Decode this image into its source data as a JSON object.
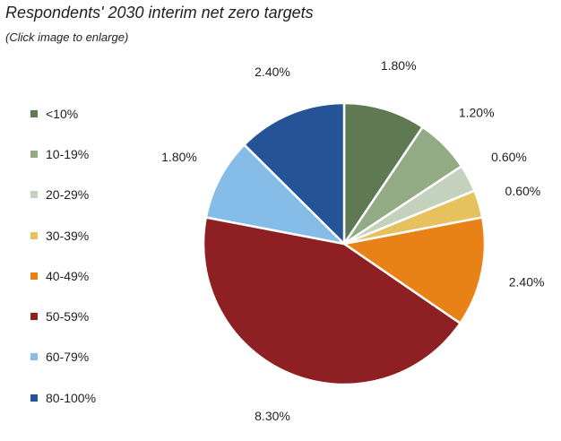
{
  "header": {
    "title": "Respondents' 2030 interim net zero targets",
    "subtitle": "(Click image to enlarge)"
  },
  "chart_data": {
    "type": "pie",
    "categories": [
      "<10%",
      "10-19%",
      "20-29%",
      "30-39%",
      "40-49%",
      "50-59%",
      "60-79%",
      "80-100%"
    ],
    "values": [
      1.8,
      1.2,
      0.6,
      0.6,
      2.4,
      8.3,
      1.8,
      2.4
    ],
    "data_labels": [
      "1.80%",
      "1.20%",
      "0.60%",
      "0.60%",
      "2.40%",
      "8.30%",
      "1.80%",
      "2.40%"
    ],
    "colors": [
      "#5f7a52",
      "#93ab85",
      "#c4d1bc",
      "#e6c15e",
      "#e88217",
      "#8e1f22",
      "#85bde8",
      "#245497"
    ],
    "legend_position": "left",
    "start_angle": "12 o'clock",
    "direction": "clockwise"
  }
}
